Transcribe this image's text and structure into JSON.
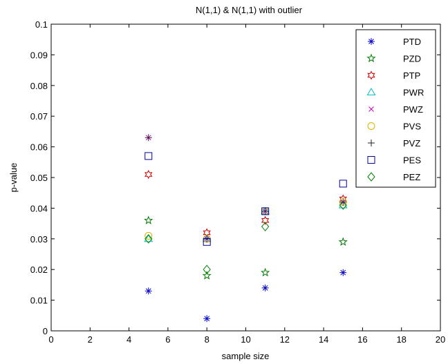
{
  "chart_data": {
    "type": "scatter",
    "title": "N(1,1) & N(1,1) with outlier",
    "xlabel": "sample size",
    "ylabel": "p-value",
    "xlim": [
      0,
      20
    ],
    "ylim": [
      0,
      0.1
    ],
    "xticks": [
      0,
      2,
      4,
      6,
      8,
      10,
      12,
      14,
      16,
      18,
      20
    ],
    "yticks": [
      0,
      0.01,
      0.02,
      0.03,
      0.04,
      0.05,
      0.06,
      0.07,
      0.08,
      0.09,
      0.1
    ],
    "xtick_labels": [
      "0",
      "2",
      "4",
      "6",
      "8",
      "10",
      "12",
      "14",
      "16",
      "18",
      "20"
    ],
    "ytick_labels": [
      "0",
      "0.01",
      "0.02",
      "0.03",
      "0.04",
      "0.05",
      "0.06",
      "0.07",
      "0.08",
      "0.09",
      "0.1"
    ],
    "grid": false,
    "legend_position": "top-right",
    "x": [
      5,
      8,
      11,
      15
    ],
    "series": [
      {
        "name": "PTD",
        "marker": "asterisk",
        "color": "#0000cc",
        "values": [
          0.013,
          0.004,
          0.014,
          0.019
        ]
      },
      {
        "name": "PZD",
        "marker": "pentagram",
        "color": "#007a00",
        "values": [
          0.036,
          0.018,
          0.019,
          0.029
        ]
      },
      {
        "name": "PTP",
        "marker": "hexagram",
        "color": "#cc0000",
        "values": [
          0.051,
          0.032,
          0.036,
          0.043
        ]
      },
      {
        "name": "PWR",
        "marker": "triangle",
        "color": "#00bfbf",
        "values": [
          0.03,
          0.03,
          0.039,
          0.041
        ]
      },
      {
        "name": "PWZ",
        "marker": "x",
        "color": "#bf00bf",
        "values": [
          0.063,
          0.03,
          0.039,
          0.042
        ]
      },
      {
        "name": "PVS",
        "marker": "circle",
        "color": "#d9b300",
        "values": [
          0.031,
          0.03,
          0.039,
          0.042
        ]
      },
      {
        "name": "PVZ",
        "marker": "plus",
        "color": "#222222",
        "values": [
          0.063,
          0.03,
          0.039,
          0.042
        ]
      },
      {
        "name": "PES",
        "marker": "square",
        "color": "#000099",
        "values": [
          0.057,
          0.029,
          0.039,
          0.048
        ]
      },
      {
        "name": "PEZ",
        "marker": "diamond",
        "color": "#008000",
        "values": [
          0.03,
          0.02,
          0.034,
          0.041
        ]
      }
    ]
  }
}
